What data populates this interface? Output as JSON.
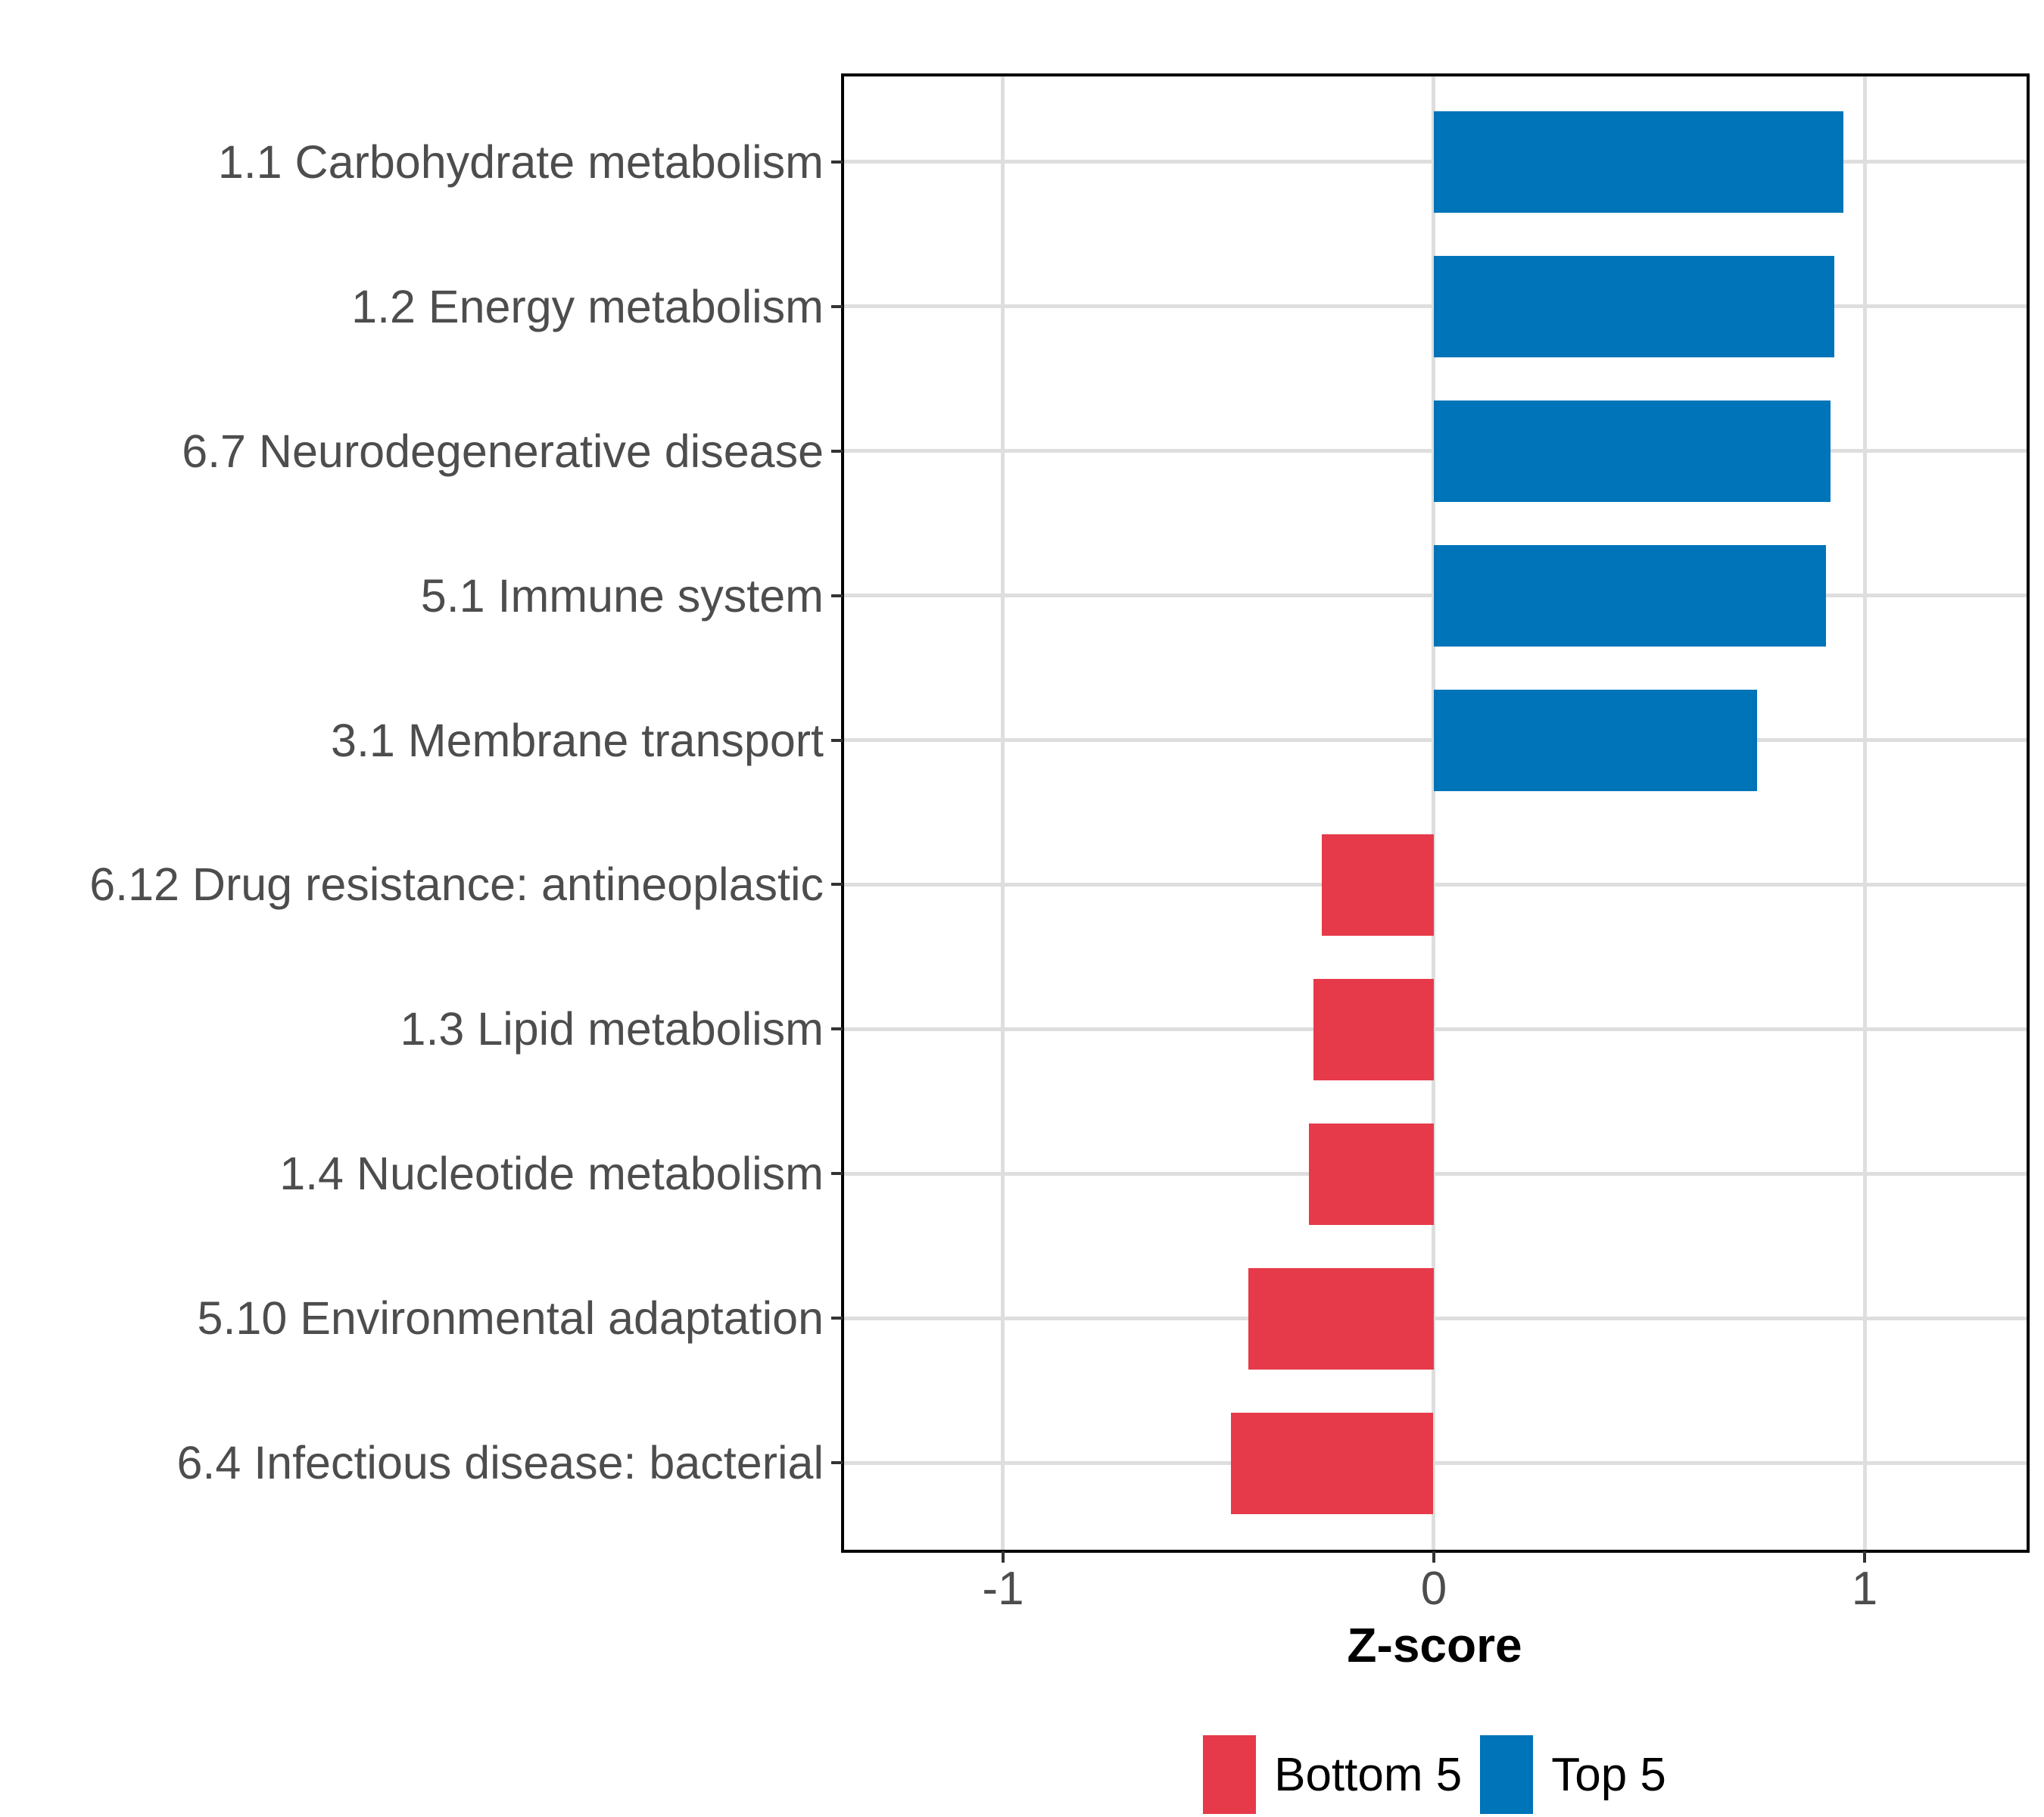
{
  "chart_data": {
    "type": "bar",
    "orientation": "horizontal",
    "title": "",
    "xlabel": "Z-score",
    "ylabel": "",
    "xlim": [
      -1.372,
      1.376
    ],
    "grid": "major",
    "legend_position": "bottom",
    "x_ticks": [
      {
        "value": -1,
        "label": "-1"
      },
      {
        "value": 0,
        "label": "0"
      },
      {
        "value": 1,
        "label": "1"
      }
    ],
    "bars": [
      {
        "category": "1.1 Carbohydrate metabolism",
        "value": 0.95,
        "group": "Top 5"
      },
      {
        "category": "1.2 Energy metabolism",
        "value": 0.93,
        "group": "Top 5"
      },
      {
        "category": "6.7 Neurodegenerative disease",
        "value": 0.92,
        "group": "Top 5"
      },
      {
        "category": "5.1 Immune system",
        "value": 0.91,
        "group": "Top 5"
      },
      {
        "category": "3.1 Membrane transport",
        "value": 0.75,
        "group": "Top 5"
      },
      {
        "category": "6.12 Drug resistance: antineoplastic",
        "value": -0.26,
        "group": "Bottom 5"
      },
      {
        "category": "1.3 Lipid metabolism",
        "value": -0.28,
        "group": "Bottom 5"
      },
      {
        "category": "1.4 Nucleotide metabolism",
        "value": -0.29,
        "group": "Bottom 5"
      },
      {
        "category": "5.10 Environmental adaptation",
        "value": -0.43,
        "group": "Bottom 5"
      },
      {
        "category": "6.4 Infectious disease: bacterial",
        "value": -0.47,
        "group": "Bottom 5"
      }
    ],
    "groups": [
      {
        "name": "Bottom 5",
        "color": "#E63A4A"
      },
      {
        "name": "Top 5",
        "color": "#0074B8"
      }
    ]
  },
  "legend": {
    "items": [
      {
        "label": "Bottom 5",
        "color": "#E63A4A"
      },
      {
        "label": "Top 5",
        "color": "#0074B8"
      }
    ]
  },
  "colors": {
    "background": "#ffffff",
    "gridline": "#dedede",
    "panel_border": "#000000",
    "tick": "#333333",
    "axis_text": "#4d4d4d",
    "title_text": "#000000"
  }
}
